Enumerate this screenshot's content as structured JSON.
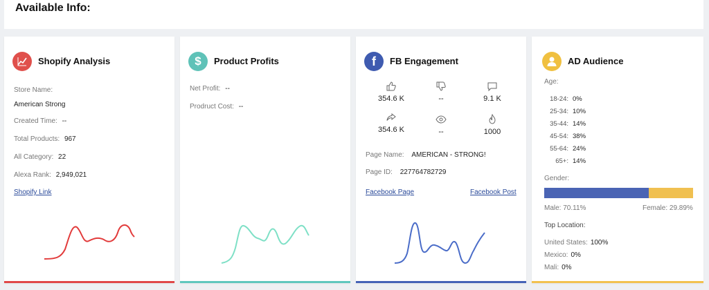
{
  "header": {
    "title": "Available Info:"
  },
  "shopify": {
    "title": "Shopify Analysis",
    "store_name_label": "Store Name:",
    "store_name": "American Strong",
    "created_time_label": "Created Time:",
    "created_time": "--",
    "total_products_label": "Total Products:",
    "total_products": "967",
    "all_category_label": "All Category:",
    "all_category": "22",
    "alexa_rank_label": "Alexa Rank:",
    "alexa_rank": "2,949,021",
    "link": "Shopify Link",
    "color": "#e84c4c",
    "icon": "line-chart-icon"
  },
  "profits": {
    "title": "Product Profits",
    "net_profit_label": "Net Profit:",
    "net_profit": "--",
    "product_cost_label": "Prodruct Cost:",
    "product_cost": "--",
    "color": "#6fd6bf",
    "icon": "dollar-icon"
  },
  "fb": {
    "title": "FB Engagement",
    "likes": "354.6 K",
    "dislikes": "--",
    "comments": "9.1 K",
    "shares": "354.6 K",
    "views": "--",
    "hot": "1000",
    "page_name_label": "Page Name:",
    "page_name": "AMERICAN - STRONG!",
    "page_id_label": "Page ID:",
    "page_id": "227764782729",
    "page_link": "Facebook Page",
    "post_link": "Facebook Post",
    "color": "#4c6cc0",
    "icon": "facebook-icon"
  },
  "audience": {
    "title": "AD Audience",
    "age_label": "Age:",
    "ages": [
      {
        "range": "18-24:",
        "value": "0%"
      },
      {
        "range": "25-34:",
        "value": "10%"
      },
      {
        "range": "35-44:",
        "value": "14%"
      },
      {
        "range": "45-54:",
        "value": "38%"
      },
      {
        "range": "55-64:",
        "value": "24%"
      },
      {
        "range": "65+:",
        "value": "14%"
      }
    ],
    "gender_label": "Gender:",
    "male_label": "Male: 70.11%",
    "female_label": "Female: 29.89%",
    "male_fraction": 0.7011,
    "male_color": "#4a64b4",
    "female_color": "#f0c050",
    "top_location_label": "Top Location:",
    "locations": [
      {
        "name": "United States:",
        "value": "100%"
      },
      {
        "name": "Mexico:",
        "value": "0%"
      },
      {
        "name": "Mali:",
        "value": "0%"
      }
    ],
    "color": "#f2c14e",
    "icon": "user-icon"
  }
}
